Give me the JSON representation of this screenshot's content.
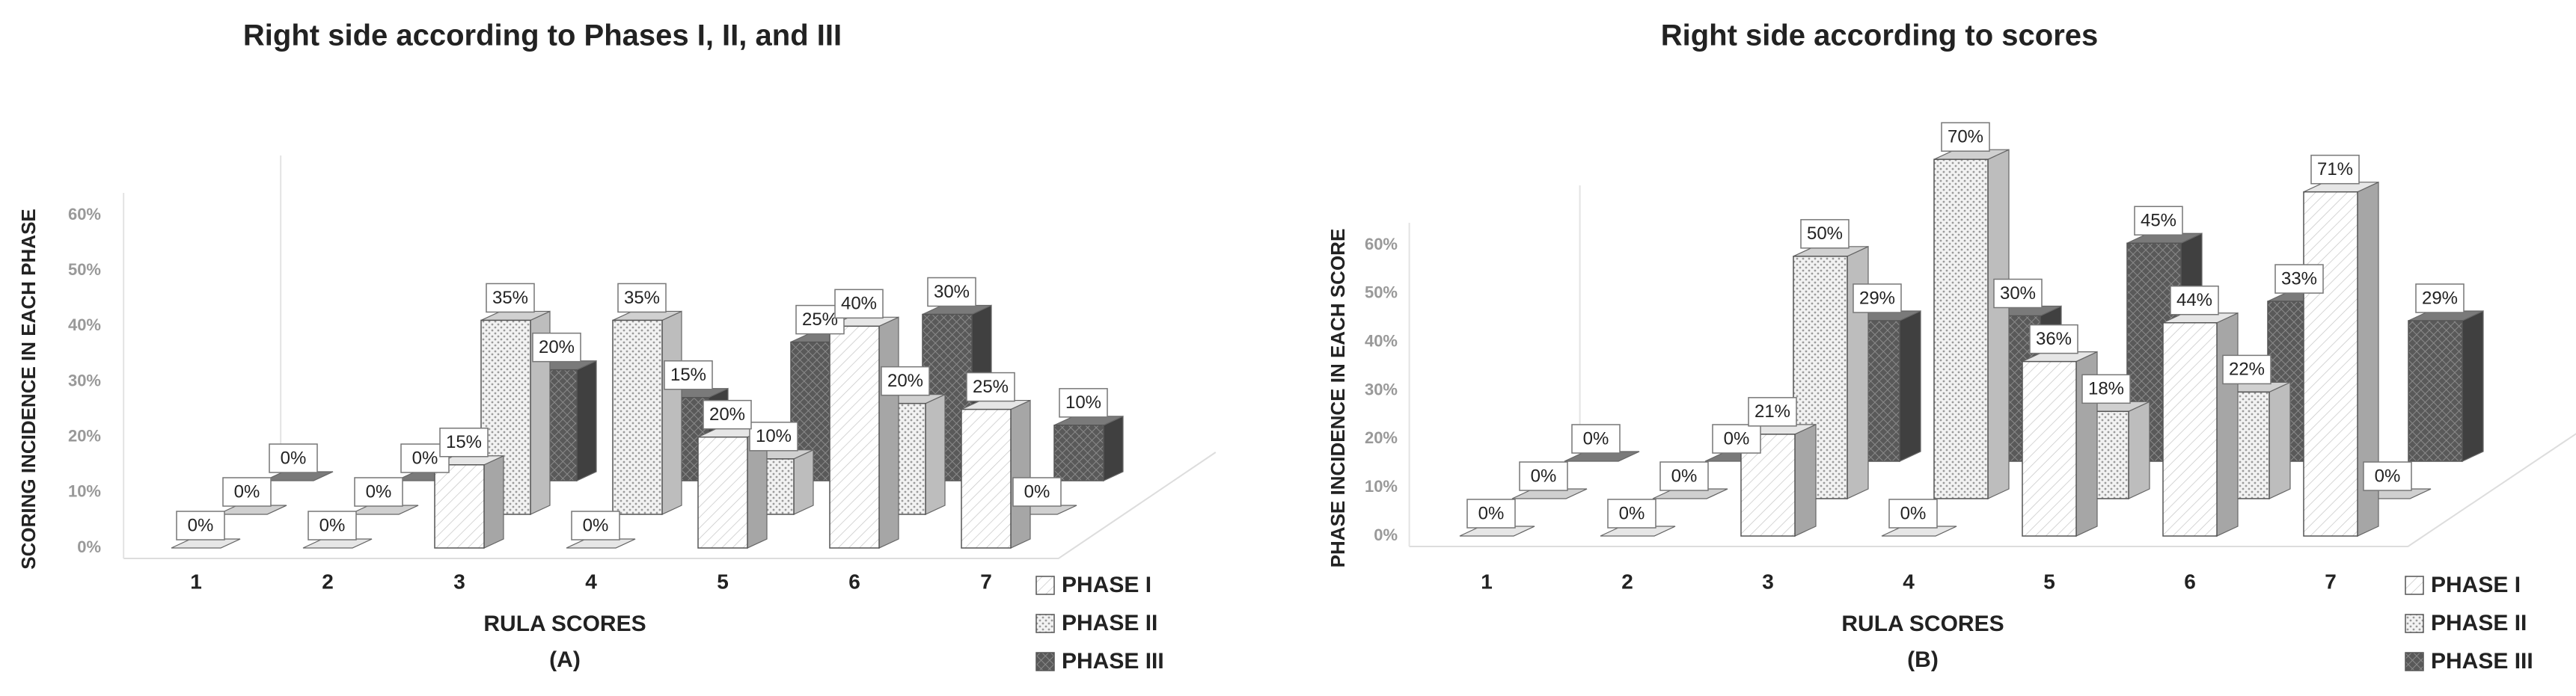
{
  "chart_data": [
    {
      "type": "bar3d",
      "title": "Right side according to Phases I, II, and III",
      "xlabel": "RULA SCORES",
      "sublabel": "(A)",
      "ylabel": "SCORING INCIDENCE IN EACH PHASE",
      "categories": [
        "1",
        "2",
        "3",
        "4",
        "5",
        "6",
        "7"
      ],
      "ylim": [
        0,
        60
      ],
      "yticks": [
        {
          "value": 0,
          "label": "0%"
        },
        {
          "value": 10,
          "label": "10%"
        },
        {
          "value": 20,
          "label": "20%"
        },
        {
          "value": 30,
          "label": "30%"
        },
        {
          "value": 40,
          "label": "40%"
        },
        {
          "value": 50,
          "label": "50%"
        },
        {
          "value": 60,
          "label": "60%"
        }
      ],
      "series": [
        {
          "name": "PHASE I",
          "color": "#ffffff",
          "values": [
            0,
            0,
            15,
            0,
            20,
            40,
            25
          ],
          "value_labels": [
            "0%",
            "0%",
            "15%",
            "0%",
            "20%",
            "40%",
            "25%"
          ]
        },
        {
          "name": "PHASE II",
          "color": "#d9d9d9",
          "values": [
            0,
            0,
            35,
            35,
            10,
            20,
            0
          ],
          "value_labels": [
            "0%",
            "0%",
            "35%",
            "35%",
            "10%",
            "20%",
            "0%"
          ]
        },
        {
          "name": "PHASE III",
          "color": "#595959",
          "values": [
            0,
            0,
            20,
            15,
            25,
            30,
            10
          ],
          "value_labels": [
            "0%",
            "0%",
            "20%",
            "15%",
            "25%",
            "30%",
            "10%"
          ]
        }
      ],
      "legend": "bottom-right"
    },
    {
      "type": "bar3d",
      "title": "Right side according to scores",
      "xlabel": "RULA SCORES",
      "sublabel": "(B)",
      "ylabel": "PHASE INCIDENCE IN EACH SCORE",
      "categories": [
        "1",
        "2",
        "3",
        "4",
        "5",
        "6",
        "7"
      ],
      "ylim": [
        0,
        60
      ],
      "yticks": [
        {
          "value": 0,
          "label": "0%"
        },
        {
          "value": 10,
          "label": "10%"
        },
        {
          "value": 20,
          "label": "20%"
        },
        {
          "value": 30,
          "label": "30%"
        },
        {
          "value": 40,
          "label": "40%"
        },
        {
          "value": 50,
          "label": "50%"
        },
        {
          "value": 60,
          "label": "60%"
        }
      ],
      "series": [
        {
          "name": "PHASE I",
          "color": "#ffffff",
          "values": [
            0,
            0,
            21,
            0,
            36,
            44,
            71
          ],
          "value_labels": [
            "0%",
            "0%",
            "21%",
            "0%",
            "36%",
            "44%",
            "71%"
          ]
        },
        {
          "name": "PHASE II",
          "color": "#d9d9d9",
          "values": [
            0,
            0,
            50,
            70,
            18,
            22,
            0
          ],
          "value_labels": [
            "0%",
            "0%",
            "50%",
            "70%",
            "18%",
            "22%",
            "0%"
          ]
        },
        {
          "name": "PHASE III",
          "color": "#595959",
          "values": [
            0,
            0,
            29,
            30,
            45,
            33,
            29
          ],
          "value_labels": [
            "0%",
            "0%",
            "29%",
            "30%",
            "45%",
            "33%",
            "29%"
          ]
        }
      ],
      "legend": "bottom-right"
    }
  ]
}
